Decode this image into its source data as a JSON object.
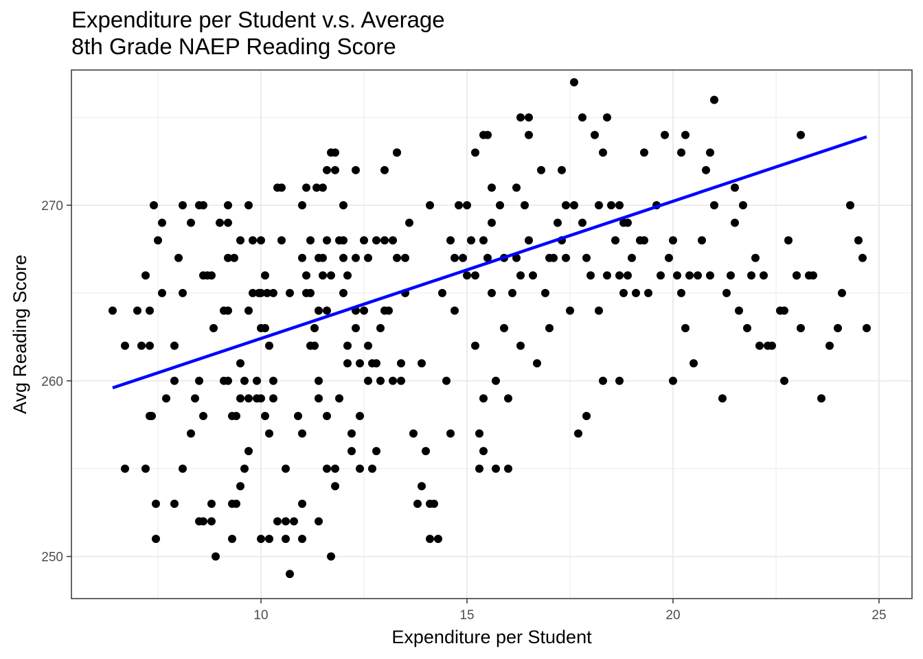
{
  "chart_data": {
    "type": "scatter",
    "title": [
      "Expenditure per Student v.s. Average",
      "8th Grade NAEP Reading Score"
    ],
    "xlabel": "Expenditure per Student",
    "ylabel": "Avg Reading Score",
    "xlim": [
      5.4,
      25.8
    ],
    "ylim": [
      247.6,
      277.7
    ],
    "xticks": [
      10,
      15,
      20,
      25
    ],
    "yticks": [
      250,
      260,
      270
    ],
    "grid": true,
    "point_color": "#000000",
    "trend_color": "#0000ff",
    "trend_line": {
      "x": [
        6.4,
        24.7
      ],
      "y": [
        259.6,
        273.9
      ]
    },
    "points": [
      [
        6.4,
        264
      ],
      [
        6.7,
        262
      ],
      [
        6.7,
        255
      ],
      [
        7.0,
        264
      ],
      [
        7.1,
        262
      ],
      [
        7.2,
        255
      ],
      [
        7.2,
        266
      ],
      [
        7.3,
        264
      ],
      [
        7.3,
        262
      ],
      [
        7.3,
        258
      ],
      [
        7.35,
        258
      ],
      [
        7.4,
        270
      ],
      [
        7.45,
        253
      ],
      [
        7.45,
        251
      ],
      [
        7.5,
        268
      ],
      [
        7.6,
        269
      ],
      [
        7.6,
        265
      ],
      [
        7.7,
        259
      ],
      [
        7.9,
        262
      ],
      [
        7.9,
        260
      ],
      [
        7.9,
        253
      ],
      [
        8.0,
        267
      ],
      [
        8.1,
        265
      ],
      [
        8.1,
        255
      ],
      [
        8.1,
        270
      ],
      [
        8.3,
        269
      ],
      [
        8.3,
        257
      ],
      [
        8.4,
        259
      ],
      [
        8.5,
        270
      ],
      [
        8.5,
        260
      ],
      [
        8.5,
        252
      ],
      [
        8.6,
        258
      ],
      [
        8.6,
        270
      ],
      [
        8.6,
        266
      ],
      [
        8.6,
        252
      ],
      [
        8.7,
        266
      ],
      [
        8.8,
        266
      ],
      [
        8.8,
        253
      ],
      [
        8.8,
        252
      ],
      [
        8.85,
        263
      ],
      [
        8.9,
        250
      ],
      [
        9.0,
        269
      ],
      [
        9.1,
        264
      ],
      [
        9.1,
        260
      ],
      [
        9.2,
        270
      ],
      [
        9.2,
        269
      ],
      [
        9.2,
        267
      ],
      [
        9.2,
        264
      ],
      [
        9.2,
        260
      ],
      [
        9.3,
        258
      ],
      [
        9.3,
        253
      ],
      [
        9.3,
        251
      ],
      [
        9.35,
        267
      ],
      [
        9.4,
        258
      ],
      [
        9.4,
        253
      ],
      [
        9.5,
        268
      ],
      [
        9.5,
        261
      ],
      [
        9.5,
        259
      ],
      [
        9.5,
        254
      ],
      [
        9.6,
        255
      ],
      [
        9.6,
        260
      ],
      [
        9.7,
        270
      ],
      [
        9.7,
        259
      ],
      [
        9.7,
        256
      ],
      [
        9.7,
        264
      ],
      [
        9.8,
        265
      ],
      [
        9.8,
        268
      ],
      [
        9.9,
        260
      ],
      [
        9.9,
        259
      ],
      [
        9.95,
        265
      ],
      [
        10.0,
        268
      ],
      [
        10.0,
        265
      ],
      [
        10.0,
        263
      ],
      [
        10.0,
        259
      ],
      [
        10.0,
        251
      ],
      [
        10.1,
        266
      ],
      [
        10.1,
        263
      ],
      [
        10.1,
        258
      ],
      [
        10.15,
        265
      ],
      [
        10.2,
        257
      ],
      [
        10.2,
        251
      ],
      [
        10.2,
        262
      ],
      [
        10.3,
        265
      ],
      [
        10.3,
        260
      ],
      [
        10.3,
        259
      ],
      [
        10.4,
        252
      ],
      [
        10.5,
        268
      ],
      [
        10.6,
        252
      ],
      [
        10.6,
        255
      ],
      [
        10.6,
        251
      ],
      [
        10.7,
        249
      ],
      [
        10.7,
        265
      ],
      [
        10.8,
        252
      ],
      [
        10.9,
        258
      ],
      [
        11.0,
        270
      ],
      [
        11.0,
        267
      ],
      [
        11.0,
        257
      ],
      [
        11.0,
        251
      ],
      [
        11.0,
        253
      ],
      [
        11.1,
        265
      ],
      [
        11.1,
        271
      ],
      [
        11.1,
        266
      ],
      [
        11.2,
        268
      ],
      [
        11.2,
        265
      ],
      [
        11.2,
        262
      ],
      [
        11.3,
        263
      ],
      [
        11.3,
        262
      ],
      [
        11.35,
        271
      ],
      [
        11.4,
        267
      ],
      [
        11.4,
        264
      ],
      [
        11.4,
        260
      ],
      [
        11.4,
        259
      ],
      [
        11.4,
        252
      ],
      [
        11.5,
        271
      ],
      [
        11.5,
        267
      ],
      [
        11.5,
        266
      ],
      [
        11.6,
        268
      ],
      [
        11.6,
        264
      ],
      [
        11.6,
        258
      ],
      [
        11.6,
        255
      ],
      [
        11.7,
        266
      ],
      [
        11.7,
        250
      ],
      [
        11.8,
        254
      ],
      [
        11.8,
        255
      ],
      [
        11.9,
        268
      ],
      [
        11.9,
        259
      ],
      [
        12.0,
        270
      ],
      [
        12.0,
        268
      ],
      [
        12.0,
        267
      ],
      [
        12.0,
        265
      ],
      [
        12.1,
        266
      ],
      [
        12.1,
        262
      ],
      [
        12.1,
        261
      ],
      [
        12.2,
        257
      ],
      [
        12.2,
        256
      ],
      [
        12.3,
        267
      ],
      [
        12.3,
        264
      ],
      [
        12.3,
        263
      ],
      [
        12.4,
        261
      ],
      [
        12.4,
        258
      ],
      [
        12.4,
        255
      ],
      [
        12.5,
        268
      ],
      [
        12.5,
        264
      ],
      [
        12.6,
        267
      ],
      [
        12.6,
        262
      ],
      [
        12.6,
        260
      ],
      [
        12.7,
        261
      ],
      [
        12.7,
        255
      ],
      [
        12.8,
        268
      ],
      [
        12.8,
        261
      ],
      [
        12.8,
        256
      ],
      [
        12.9,
        263
      ],
      [
        12.9,
        260
      ],
      [
        13.0,
        272
      ],
      [
        13.0,
        268
      ],
      [
        13.0,
        264
      ],
      [
        13.1,
        264
      ],
      [
        13.2,
        260
      ],
      [
        13.2,
        268
      ],
      [
        13.3,
        273
      ],
      [
        13.3,
        267
      ],
      [
        13.4,
        261
      ],
      [
        13.4,
        260
      ],
      [
        13.5,
        267
      ],
      [
        13.5,
        265
      ],
      [
        13.6,
        269
      ],
      [
        13.7,
        257
      ],
      [
        13.8,
        253
      ],
      [
        13.9,
        261
      ],
      [
        13.9,
        254
      ],
      [
        14.0,
        256
      ],
      [
        14.1,
        251
      ],
      [
        14.1,
        253
      ],
      [
        14.2,
        253
      ],
      [
        14.3,
        251
      ],
      [
        14.4,
        265
      ],
      [
        14.5,
        260
      ],
      [
        14.6,
        257
      ],
      [
        14.6,
        268
      ],
      [
        14.7,
        267
      ],
      [
        14.7,
        264
      ],
      [
        14.8,
        270
      ],
      [
        14.9,
        267
      ],
      [
        15.0,
        270
      ],
      [
        15.0,
        266
      ],
      [
        15.1,
        268
      ],
      [
        15.2,
        266
      ],
      [
        15.2,
        262
      ],
      [
        15.3,
        255
      ],
      [
        15.3,
        257
      ],
      [
        15.4,
        268
      ],
      [
        15.4,
        259
      ],
      [
        15.4,
        256
      ],
      [
        15.5,
        267
      ],
      [
        15.6,
        269
      ],
      [
        15.6,
        265
      ],
      [
        15.7,
        255
      ],
      [
        15.7,
        260
      ],
      [
        15.8,
        270
      ],
      [
        15.9,
        263
      ],
      [
        15.9,
        267
      ],
      [
        16.0,
        259
      ],
      [
        16.0,
        255
      ],
      [
        16.1,
        265
      ],
      [
        16.2,
        267
      ],
      [
        16.3,
        266
      ],
      [
        16.3,
        262
      ],
      [
        16.4,
        270
      ],
      [
        16.5,
        268
      ],
      [
        16.6,
        266
      ],
      [
        16.7,
        261
      ],
      [
        16.8,
        272
      ],
      [
        16.9,
        265
      ],
      [
        17.0,
        267
      ],
      [
        17.0,
        263
      ],
      [
        17.1,
        267
      ],
      [
        17.2,
        269
      ],
      [
        17.3,
        268
      ],
      [
        17.4,
        270
      ],
      [
        17.4,
        267
      ],
      [
        17.5,
        264
      ],
      [
        17.6,
        270
      ],
      [
        17.7,
        257
      ],
      [
        17.8,
        269
      ],
      [
        17.9,
        267
      ],
      [
        17.9,
        258
      ],
      [
        18.0,
        266
      ],
      [
        18.1,
        274
      ],
      [
        18.2,
        270
      ],
      [
        18.2,
        264
      ],
      [
        18.3,
        273
      ],
      [
        18.3,
        260
      ],
      [
        18.4,
        266
      ],
      [
        18.5,
        270
      ],
      [
        18.6,
        268
      ],
      [
        18.7,
        266
      ],
      [
        18.7,
        260
      ],
      [
        18.8,
        269
      ],
      [
        18.8,
        265
      ],
      [
        18.9,
        266
      ],
      [
        18.9,
        269
      ],
      [
        19.0,
        267
      ],
      [
        19.1,
        265
      ],
      [
        19.2,
        268
      ],
      [
        19.3,
        268
      ],
      [
        19.4,
        265
      ],
      [
        19.6,
        270
      ],
      [
        19.7,
        266
      ],
      [
        19.9,
        267
      ],
      [
        20.0,
        268
      ],
      [
        20.0,
        260
      ],
      [
        20.1,
        266
      ],
      [
        20.2,
        265
      ],
      [
        20.3,
        263
      ],
      [
        20.4,
        266
      ],
      [
        20.5,
        261
      ],
      [
        20.6,
        266
      ],
      [
        20.7,
        268
      ],
      [
        20.8,
        272
      ],
      [
        20.9,
        266
      ],
      [
        21.0,
        270
      ],
      [
        21.2,
        259
      ],
      [
        21.3,
        265
      ],
      [
        21.4,
        266
      ],
      [
        21.5,
        269
      ],
      [
        21.6,
        264
      ],
      [
        21.7,
        270
      ],
      [
        21.8,
        263
      ],
      [
        21.9,
        266
      ],
      [
        22.0,
        267
      ],
      [
        22.1,
        262
      ],
      [
        22.3,
        262
      ],
      [
        22.4,
        262
      ],
      [
        22.6,
        264
      ],
      [
        22.7,
        264
      ],
      [
        22.8,
        268
      ],
      [
        23.0,
        266
      ],
      [
        23.1,
        263
      ],
      [
        23.3,
        266
      ],
      [
        23.4,
        266
      ],
      [
        23.6,
        259
      ],
      [
        23.8,
        262
      ],
      [
        24.0,
        263
      ],
      [
        24.1,
        265
      ],
      [
        24.3,
        270
      ],
      [
        24.5,
        268
      ],
      [
        24.6,
        267
      ],
      [
        24.7,
        263
      ],
      [
        12.3,
        272
      ],
      [
        13.3,
        273
      ],
      [
        14.1,
        270
      ],
      [
        15.6,
        271
      ],
      [
        16.3,
        275
      ],
      [
        16.5,
        275
      ],
      [
        17.3,
        272
      ],
      [
        17.6,
        277
      ],
      [
        17.8,
        275
      ],
      [
        18.4,
        275
      ],
      [
        18.7,
        270
      ],
      [
        19.3,
        273
      ],
      [
        19.8,
        274
      ],
      [
        20.2,
        273
      ],
      [
        20.3,
        274
      ],
      [
        20.9,
        273
      ],
      [
        21.0,
        276
      ],
      [
        21.5,
        271
      ],
      [
        22.2,
        266
      ],
      [
        22.7,
        260
      ],
      [
        23.0,
        266
      ],
      [
        23.1,
        274
      ],
      [
        10.4,
        271
      ],
      [
        10.5,
        271
      ],
      [
        11.7,
        273
      ],
      [
        11.8,
        273
      ],
      [
        11.6,
        272
      ],
      [
        11.8,
        272
      ],
      [
        15.2,
        273
      ],
      [
        15.4,
        274
      ],
      [
        15.5,
        274
      ],
      [
        16.5,
        274
      ],
      [
        16.2,
        271
      ]
    ]
  }
}
